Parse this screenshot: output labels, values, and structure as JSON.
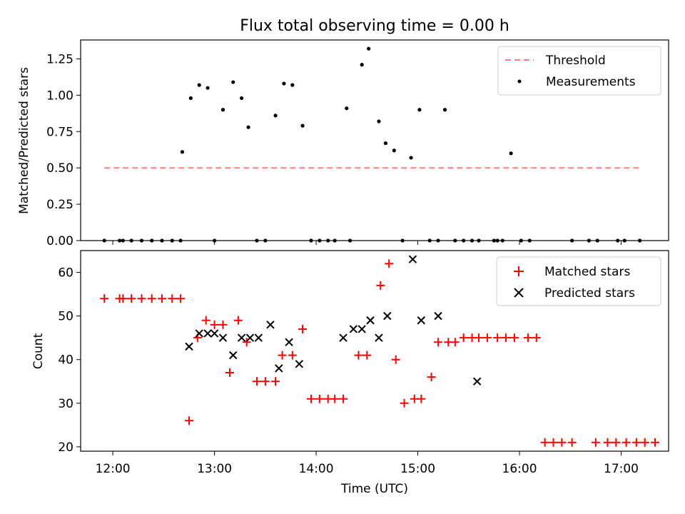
{
  "chart_data": [
    {
      "type": "scatter",
      "title": "Flux total observing time = 0.00 h",
      "xlabel": "",
      "ylabel": "Matched/Predicted stars",
      "xlim": [
        "11:41",
        "17:28"
      ],
      "ylim": [
        0,
        1.38
      ],
      "y_ticks": [
        0,
        0.25,
        0.5,
        0.75,
        1.0,
        1.25
      ],
      "y_tick_labels": [
        "0.00",
        "0.25",
        "0.50",
        "0.75",
        "1.00",
        "1.25"
      ],
      "legend_position": "top-right",
      "legend": [
        "Threshold",
        "Measurements"
      ],
      "threshold": {
        "name": "Threshold",
        "value": 0.5,
        "x_start": "11:55",
        "x_end": "17:11",
        "color": "#ff7f7f",
        "style": "dashed"
      },
      "measurements": {
        "name": "Measurements",
        "color": "#000000",
        "points": [
          [
            "11:55",
            0
          ],
          [
            "12:04",
            0
          ],
          [
            "12:06",
            0
          ],
          [
            "12:11",
            0
          ],
          [
            "12:17",
            0
          ],
          [
            "12:23",
            0
          ],
          [
            "12:29",
            0
          ],
          [
            "12:35",
            0
          ],
          [
            "12:40",
            0
          ],
          [
            "12:41",
            0.61
          ],
          [
            "12:46",
            0.98
          ],
          [
            "12:51",
            1.07
          ],
          [
            "12:56",
            1.05
          ],
          [
            "13:00",
            0
          ],
          [
            "13:05",
            0.9
          ],
          [
            "13:11",
            1.09
          ],
          [
            "13:16",
            0.98
          ],
          [
            "13:20",
            0.78
          ],
          [
            "13:25",
            0
          ],
          [
            "13:30",
            0
          ],
          [
            "13:36",
            0.86
          ],
          [
            "13:41",
            1.08
          ],
          [
            "13:46",
            1.07
          ],
          [
            "13:52",
            0.79
          ],
          [
            "13:57",
            0
          ],
          [
            "14:02",
            0
          ],
          [
            "14:07",
            0
          ],
          [
            "14:11",
            0
          ],
          [
            "14:18",
            0.91
          ],
          [
            "14:20",
            0
          ],
          [
            "14:27",
            1.21
          ],
          [
            "14:31",
            1.32
          ],
          [
            "14:37",
            0.82
          ],
          [
            "14:41",
            0.67
          ],
          [
            "14:46",
            0.62
          ],
          [
            "14:51",
            0
          ],
          [
            "14:56",
            0.57
          ],
          [
            "15:01",
            0.9
          ],
          [
            "15:07",
            0
          ],
          [
            "15:12",
            0
          ],
          [
            "15:16",
            0.9
          ],
          [
            "15:22",
            0
          ],
          [
            "15:27",
            0
          ],
          [
            "15:32",
            0
          ],
          [
            "15:36",
            0
          ],
          [
            "15:45",
            0
          ],
          [
            "15:47",
            0
          ],
          [
            "15:50",
            0
          ],
          [
            "15:55",
            0.6
          ],
          [
            "16:01",
            0
          ],
          [
            "16:06",
            0
          ],
          [
            "16:31",
            0
          ],
          [
            "16:41",
            0
          ],
          [
            "16:46",
            0
          ],
          [
            "16:58",
            0
          ],
          [
            "17:02",
            0
          ],
          [
            "17:11",
            0
          ]
        ]
      }
    },
    {
      "type": "scatter",
      "title": "",
      "xlabel": "Time (UTC)",
      "ylabel": "Count",
      "xlim": [
        "11:41",
        "17:28"
      ],
      "ylim": [
        19,
        65
      ],
      "x_ticks": [
        "12:00",
        "13:00",
        "14:00",
        "15:00",
        "16:00",
        "17:00"
      ],
      "y_ticks": [
        20,
        30,
        40,
        50,
        60
      ],
      "y_tick_labels": [
        "20",
        "30",
        "40",
        "50",
        "60"
      ],
      "legend_position": "top-right",
      "legend": [
        "Matched stars",
        "Predicted stars"
      ],
      "series": [
        {
          "name": "Matched stars",
          "marker": "+",
          "color": "#ff0000",
          "points": [
            [
              "11:55",
              54
            ],
            [
              "12:04",
              54
            ],
            [
              "12:06",
              54
            ],
            [
              "12:11",
              54
            ],
            [
              "12:17",
              54
            ],
            [
              "12:23",
              54
            ],
            [
              "12:29",
              54
            ],
            [
              "12:35",
              54
            ],
            [
              "12:40",
              54
            ],
            [
              "12:45",
              26
            ],
            [
              "12:50",
              45
            ],
            [
              "12:55",
              49
            ],
            [
              "13:00",
              48
            ],
            [
              "13:05",
              48
            ],
            [
              "13:09",
              37
            ],
            [
              "13:14",
              49
            ],
            [
              "13:19",
              44
            ],
            [
              "13:25",
              35
            ],
            [
              "13:30",
              35
            ],
            [
              "13:36",
              35
            ],
            [
              "13:40",
              41
            ],
            [
              "13:46",
              41
            ],
            [
              "13:52",
              47
            ],
            [
              "13:57",
              31
            ],
            [
              "14:02",
              31
            ],
            [
              "14:07",
              31
            ],
            [
              "14:11",
              31
            ],
            [
              "14:16",
              31
            ],
            [
              "14:25",
              41
            ],
            [
              "14:30",
              41
            ],
            [
              "14:38",
              57
            ],
            [
              "14:43",
              62
            ],
            [
              "14:47",
              40
            ],
            [
              "14:52",
              30
            ],
            [
              "14:58",
              31
            ],
            [
              "15:02",
              31
            ],
            [
              "15:08",
              36
            ],
            [
              "15:12",
              44
            ],
            [
              "15:18",
              44
            ],
            [
              "15:22",
              44
            ],
            [
              "15:27",
              45
            ],
            [
              "15:32",
              45
            ],
            [
              "15:36",
              45
            ],
            [
              "15:41",
              45
            ],
            [
              "15:47",
              45
            ],
            [
              "15:52",
              45
            ],
            [
              "15:57",
              45
            ],
            [
              "16:05",
              45
            ],
            [
              "16:10",
              45
            ],
            [
              "16:15",
              21
            ],
            [
              "16:20",
              21
            ],
            [
              "16:25",
              21
            ],
            [
              "16:31",
              21
            ],
            [
              "16:45",
              21
            ],
            [
              "16:52",
              21
            ],
            [
              "16:57",
              21
            ],
            [
              "17:03",
              21
            ],
            [
              "17:09",
              21
            ],
            [
              "17:14",
              21
            ],
            [
              "17:20",
              21
            ]
          ]
        },
        {
          "name": "Predicted stars",
          "marker": "x",
          "color": "#000000",
          "points": [
            [
              "12:45",
              43
            ],
            [
              "12:51",
              46
            ],
            [
              "12:56",
              46
            ],
            [
              "13:00",
              46
            ],
            [
              "13:05",
              45
            ],
            [
              "13:11",
              41
            ],
            [
              "13:16",
              45
            ],
            [
              "13:21",
              45
            ],
            [
              "13:26",
              45
            ],
            [
              "13:33",
              48
            ],
            [
              "13:38",
              38
            ],
            [
              "13:44",
              44
            ],
            [
              "13:50",
              39
            ],
            [
              "14:16",
              45
            ],
            [
              "14:22",
              47
            ],
            [
              "14:27",
              47
            ],
            [
              "14:32",
              49
            ],
            [
              "14:37",
              45
            ],
            [
              "14:42",
              50
            ],
            [
              "14:57",
              63
            ],
            [
              "15:02",
              49
            ],
            [
              "15:12",
              50
            ],
            [
              "15:35",
              35
            ]
          ]
        }
      ]
    }
  ]
}
